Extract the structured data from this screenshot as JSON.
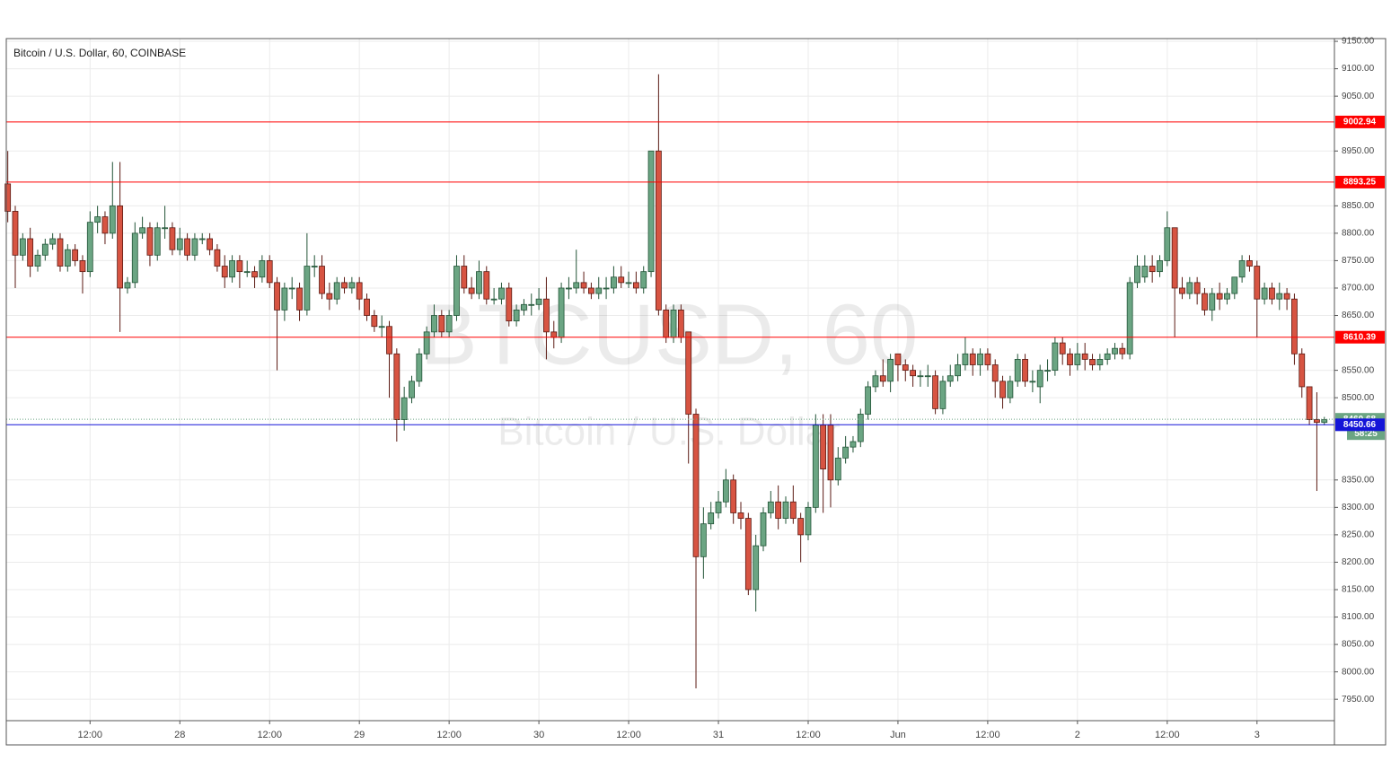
{
  "chart_data": {
    "type": "candlestick",
    "title": "Bitcoin / U.S. Dollar, 60, COINBASE",
    "watermark": "BTCUSD, 60",
    "watermark_subtitle": "Bitcoin / U.S. Dollar",
    "up_color": "#6ba583",
    "down_color": "#d75442",
    "xlim": [
      -0.2,
      177.35
    ],
    "ylim": [
      7911,
      9155
    ],
    "grid": true,
    "yticks": [
      {
        "value": 7950,
        "label": "7950.00"
      },
      {
        "value": 8000,
        "label": "8000.00"
      },
      {
        "value": 8050,
        "label": "8050.00"
      },
      {
        "value": 8100,
        "label": "8100.00"
      },
      {
        "value": 8150,
        "label": "8150.00"
      },
      {
        "value": 8200,
        "label": "8200.00"
      },
      {
        "value": 8250,
        "label": "8250.00"
      },
      {
        "value": 8300,
        "label": "8300.00"
      },
      {
        "value": 8350,
        "label": "8350.00"
      },
      {
        "value": 8500,
        "label": "8500.00"
      },
      {
        "value": 8550,
        "label": "8550.00"
      },
      {
        "value": 8650,
        "label": "8650.00"
      },
      {
        "value": 8700,
        "label": "8700.00"
      },
      {
        "value": 8750,
        "label": "8750.00"
      },
      {
        "value": 8800,
        "label": "8800.00"
      },
      {
        "value": 8850,
        "label": "8850.00"
      },
      {
        "value": 8950,
        "label": "8950.00"
      },
      {
        "value": 9050,
        "label": "9050.00"
      },
      {
        "value": 9100,
        "label": "9100.00"
      },
      {
        "value": 9150,
        "label": "9150.00"
      }
    ],
    "xticks": [
      {
        "value": 11,
        "label": "12:00"
      },
      {
        "value": 23,
        "label": "28"
      },
      {
        "value": 35,
        "label": "12:00"
      },
      {
        "value": 47,
        "label": "29"
      },
      {
        "value": 59,
        "label": "12:00"
      },
      {
        "value": 71,
        "label": "30"
      },
      {
        "value": 83,
        "label": "12:00"
      },
      {
        "value": 95,
        "label": "31"
      },
      {
        "value": 107,
        "label": "12:00"
      },
      {
        "value": 119,
        "label": "Jun"
      },
      {
        "value": 131,
        "label": "12:00"
      },
      {
        "value": 143,
        "label": "2"
      },
      {
        "value": 155,
        "label": "12:00"
      },
      {
        "value": 167,
        "label": "3"
      }
    ],
    "levels": [
      {
        "value": 9002.94,
        "color": "#ff0000"
      },
      {
        "value": 8893.25,
        "color": "#ff0000"
      },
      {
        "value": 8610.39,
        "color": "#ff0000"
      },
      {
        "value": 8460.68,
        "color": "#6ba583",
        "style": "dotted"
      },
      {
        "value": 8450.66,
        "color": "#1515d8"
      }
    ],
    "countdown": "58:25",
    "open": [
      8890,
      8840,
      8760,
      8790,
      8740,
      8760,
      8780,
      8790,
      8740,
      8770,
      8750,
      8730,
      8820,
      8830,
      8800,
      8850,
      8700,
      8710,
      8800,
      8810,
      8760,
      8810,
      8810,
      8770,
      8790,
      8760,
      8790,
      8790,
      8770,
      8740,
      8720,
      8750,
      8730,
      8730,
      8720,
      8750,
      8710,
      8660,
      8700,
      8700,
      8660,
      8740,
      8740,
      8690,
      8680,
      8710,
      8700,
      8710,
      8680,
      8650,
      8630,
      8630,
      8580,
      8460,
      8500,
      8530,
      8580,
      8620,
      8650,
      8620,
      8650,
      8740,
      8700,
      8690,
      8730,
      8680,
      8680,
      8700,
      8640,
      8660,
      8670,
      8670,
      8680,
      8620,
      8610,
      8700,
      8700,
      8710,
      8700,
      8690,
      8700,
      8700,
      8720,
      8710,
      8710,
      8700,
      8730,
      8950,
      8660,
      8610,
      8660,
      8620,
      8470,
      8210,
      8270,
      8290,
      8310,
      8350,
      8290,
      8280,
      8150,
      8230,
      8290,
      8310,
      8280,
      8310,
      8280,
      8250,
      8300,
      8450,
      8450,
      8350,
      8390,
      8410,
      8420,
      8470,
      8520,
      8540,
      8530,
      8580,
      8560,
      8550,
      8540,
      8540,
      8540,
      8480,
      8530,
      8540,
      8560,
      8580,
      8560,
      8580,
      8560,
      8530,
      8500,
      8530,
      8570,
      8530,
      8520,
      8550,
      8550,
      8600,
      8580,
      8560,
      8580,
      8570,
      8560,
      8570,
      8580,
      8590,
      8580,
      8710,
      8720,
      8740,
      8730,
      8750,
      8810,
      8700,
      8690,
      8710,
      8690,
      8660,
      8690,
      8680,
      8690,
      8720,
      8750,
      8740,
      8680,
      8700,
      8680,
      8690,
      8680,
      8580,
      8520,
      8460,
      8455
    ],
    "high": [
      8950,
      8850,
      8800,
      8810,
      8770,
      8790,
      8800,
      8800,
      8780,
      8780,
      8760,
      8840,
      8850,
      8840,
      8930,
      8930,
      8720,
      8820,
      8830,
      8820,
      8820,
      8850,
      8820,
      8810,
      8800,
      8800,
      8800,
      8800,
      8780,
      8760,
      8760,
      8760,
      8750,
      8740,
      8760,
      8760,
      8720,
      8710,
      8720,
      8710,
      8800,
      8760,
      8760,
      8710,
      8720,
      8720,
      8720,
      8720,
      8690,
      8660,
      8650,
      8640,
      8590,
      8520,
      8540,
      8590,
      8630,
      8670,
      8660,
      8660,
      8760,
      8760,
      8720,
      8750,
      8740,
      8700,
      8710,
      8710,
      8670,
      8680,
      8690,
      8700,
      8720,
      8640,
      8710,
      8720,
      8770,
      8730,
      8710,
      8720,
      8720,
      8740,
      8740,
      8730,
      8730,
      8740,
      8950,
      9090,
      8670,
      8670,
      8670,
      8620,
      8480,
      8300,
      8310,
      8330,
      8370,
      8360,
      8310,
      8290,
      8250,
      8300,
      8330,
      8340,
      8320,
      8340,
      8290,
      8310,
      8470,
      8470,
      8470,
      8410,
      8430,
      8430,
      8480,
      8530,
      8550,
      8570,
      8580,
      8580,
      8570,
      8560,
      8550,
      8560,
      8550,
      8540,
      8560,
      8580,
      8610,
      8590,
      8590,
      8590,
      8570,
      8540,
      8540,
      8580,
      8580,
      8550,
      8560,
      8570,
      8610,
      8610,
      8590,
      8600,
      8600,
      8580,
      8580,
      8590,
      8600,
      8600,
      8720,
      8760,
      8760,
      8760,
      8760,
      8840,
      8810,
      8720,
      8720,
      8720,
      8700,
      8700,
      8710,
      8700,
      8720,
      8760,
      8760,
      8750,
      8710,
      8710,
      8710,
      8700,
      8690,
      8590,
      8520,
      8510,
      8465
    ],
    "low": [
      8820,
      8700,
      8750,
      8720,
      8730,
      8750,
      8770,
      8730,
      8730,
      8740,
      8690,
      8720,
      8800,
      8780,
      8790,
      8620,
      8690,
      8700,
      8790,
      8740,
      8750,
      8790,
      8760,
      8760,
      8750,
      8750,
      8780,
      8760,
      8730,
      8700,
      8710,
      8700,
      8720,
      8700,
      8710,
      8700,
      8550,
      8640,
      8680,
      8640,
      8650,
      8720,
      8680,
      8660,
      8670,
      8690,
      8690,
      8660,
      8640,
      8620,
      8610,
      8500,
      8420,
      8440,
      8490,
      8520,
      8570,
      8610,
      8610,
      8610,
      8640,
      8690,
      8680,
      8680,
      8670,
      8670,
      8670,
      8630,
      8630,
      8650,
      8650,
      8660,
      8570,
      8590,
      8600,
      8680,
      8690,
      8690,
      8680,
      8680,
      8680,
      8690,
      8700,
      8700,
      8690,
      8690,
      8720,
      8650,
      8600,
      8600,
      8600,
      8380,
      7970,
      8170,
      8260,
      8280,
      8300,
      8270,
      8260,
      8140,
      8110,
      8220,
      8280,
      8260,
      8270,
      8270,
      8200,
      8240,
      8290,
      8290,
      8300,
      8340,
      8380,
      8400,
      8410,
      8460,
      8510,
      8520,
      8510,
      8530,
      8530,
      8520,
      8520,
      8520,
      8470,
      8470,
      8520,
      8530,
      8550,
      8540,
      8540,
      8550,
      8500,
      8480,
      8490,
      8520,
      8520,
      8510,
      8490,
      8530,
      8540,
      8560,
      8540,
      8550,
      8550,
      8550,
      8550,
      8560,
      8570,
      8570,
      8570,
      8700,
      8710,
      8710,
      8720,
      8740,
      8610,
      8680,
      8680,
      8670,
      8650,
      8640,
      8660,
      8670,
      8680,
      8710,
      8730,
      8610,
      8670,
      8670,
      8660,
      8660,
      8560,
      8500,
      8450,
      8330,
      8450
    ],
    "close": [
      8840,
      8760,
      8790,
      8740,
      8760,
      8780,
      8790,
      8740,
      8770,
      8750,
      8730,
      8820,
      8830,
      8800,
      8850,
      8700,
      8710,
      8800,
      8810,
      8760,
      8810,
      8810,
      8770,
      8790,
      8760,
      8790,
      8790,
      8770,
      8740,
      8720,
      8750,
      8730,
      8730,
      8720,
      8750,
      8710,
      8660,
      8700,
      8700,
      8660,
      8740,
      8740,
      8690,
      8680,
      8710,
      8700,
      8710,
      8680,
      8650,
      8630,
      8630,
      8580,
      8460,
      8500,
      8530,
      8580,
      8620,
      8650,
      8620,
      8650,
      8740,
      8700,
      8690,
      8730,
      8680,
      8680,
      8700,
      8640,
      8660,
      8670,
      8670,
      8680,
      8620,
      8610,
      8700,
      8700,
      8710,
      8700,
      8690,
      8700,
      8700,
      8720,
      8710,
      8710,
      8700,
      8730,
      8950,
      8660,
      8610,
      8660,
      8610,
      8470,
      8210,
      8270,
      8290,
      8310,
      8350,
      8290,
      8280,
      8150,
      8230,
      8290,
      8310,
      8280,
      8310,
      8280,
      8250,
      8300,
      8450,
      8370,
      8350,
      8390,
      8410,
      8420,
      8470,
      8520,
      8540,
      8530,
      8570,
      8560,
      8550,
      8540,
      8540,
      8540,
      8480,
      8530,
      8540,
      8560,
      8580,
      8560,
      8580,
      8560,
      8530,
      8500,
      8530,
      8570,
      8530,
      8530,
      8550,
      8550,
      8600,
      8580,
      8560,
      8580,
      8570,
      8560,
      8570,
      8580,
      8590,
      8580,
      8710,
      8740,
      8740,
      8730,
      8750,
      8810,
      8700,
      8690,
      8710,
      8690,
      8660,
      8690,
      8680,
      8690,
      8720,
      8750,
      8740,
      8680,
      8700,
      8680,
      8690,
      8680,
      8580,
      8520,
      8460,
      8455,
      8460
    ]
  }
}
